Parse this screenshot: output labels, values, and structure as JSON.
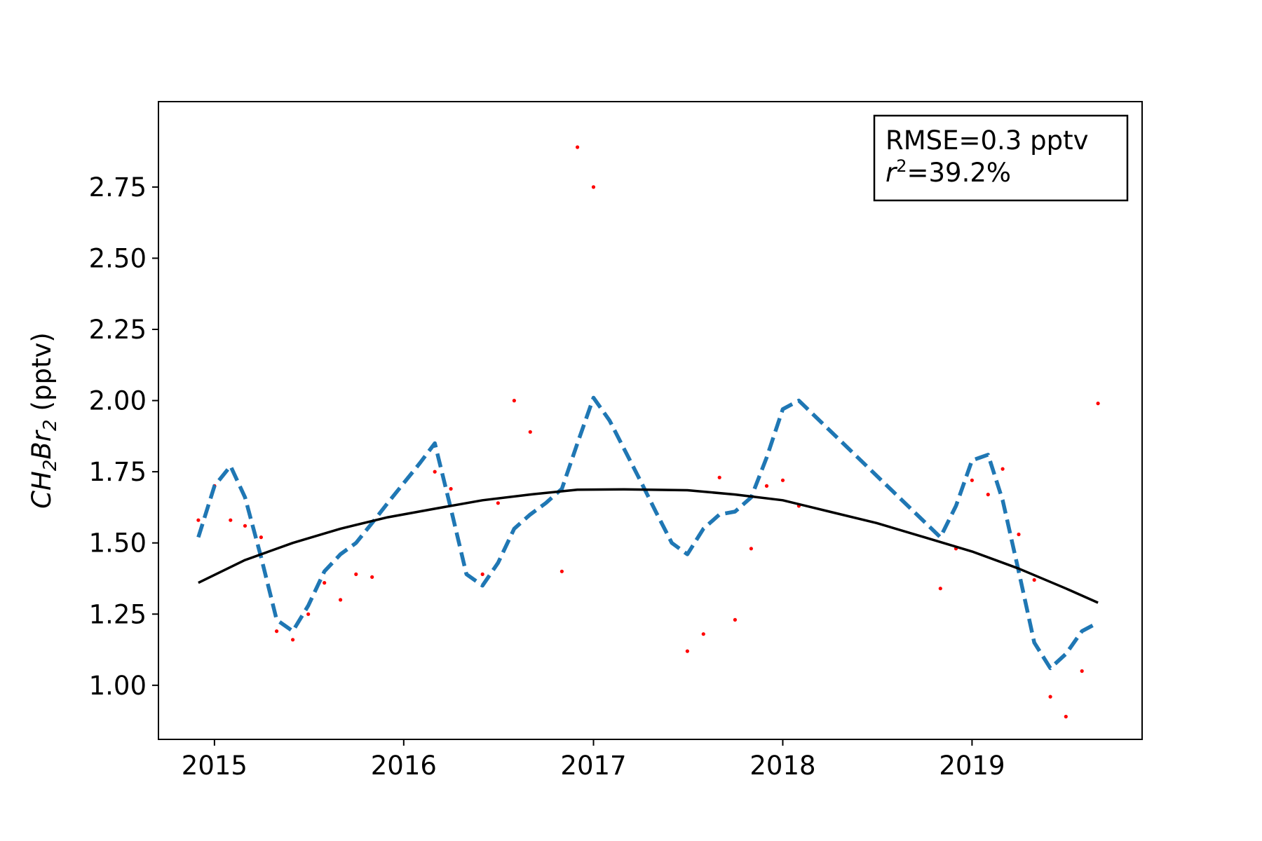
{
  "chart_data": {
    "type": "line",
    "ylabel": {
      "main": "CH",
      "sub1": "2",
      "mid": "Br",
      "sub2": "2",
      "unit": "(pptv)"
    },
    "xlim": [
      "2014-09-15",
      "2019-11-25"
    ],
    "ylim": [
      0.81,
      3.05
    ],
    "xticks": [
      {
        "date": "2015-01-01",
        "label": "2015"
      },
      {
        "date": "2016-01-01",
        "label": "2016"
      },
      {
        "date": "2017-01-01",
        "label": "2017"
      },
      {
        "date": "2018-01-01",
        "label": "2018"
      },
      {
        "date": "2019-01-01",
        "label": "2019"
      }
    ],
    "yticks": [
      {
        "value": 1.0,
        "label": "1.00"
      },
      {
        "value": 1.25,
        "label": "1.25"
      },
      {
        "value": 1.5,
        "label": "1.50"
      },
      {
        "value": 1.75,
        "label": "1.75"
      },
      {
        "value": 2.0,
        "label": "2.00"
      },
      {
        "value": 2.25,
        "label": "2.25"
      },
      {
        "value": 2.5,
        "label": "2.50"
      },
      {
        "value": 2.75,
        "label": "2.75"
      }
    ],
    "legend": {
      "placement": "top-right",
      "rmse": "RMSE=0.3 pptv",
      "r2_symbol": "r",
      "r2_exp": "2",
      "r2_value": "=39.2%"
    },
    "series": [
      {
        "style": "scatter",
        "color": "#ff0000",
        "points": [
          [
            "2014-12-01",
            1.58
          ],
          [
            "2015-01-01",
            1.7
          ],
          [
            "2015-02-01",
            1.58
          ],
          [
            "2015-03-01",
            1.56
          ],
          [
            "2015-04-01",
            1.52
          ],
          [
            "2015-05-01",
            1.19
          ],
          [
            "2015-06-01",
            1.16
          ],
          [
            "2015-07-01",
            1.25
          ],
          [
            "2015-08-01",
            1.36
          ],
          [
            "2015-09-01",
            1.3
          ],
          [
            "2015-10-01",
            1.39
          ],
          [
            "2015-11-01",
            1.38
          ],
          [
            "2016-03-01",
            1.75
          ],
          [
            "2016-04-01",
            1.69
          ],
          [
            "2016-06-01",
            1.39
          ],
          [
            "2016-07-01",
            1.64
          ],
          [
            "2016-08-01",
            2.0
          ],
          [
            "2016-09-01",
            1.89
          ],
          [
            "2016-11-01",
            1.4
          ],
          [
            "2016-12-01",
            2.89
          ],
          [
            "2017-01-01",
            2.75
          ],
          [
            "2017-07-01",
            1.12
          ],
          [
            "2017-08-01",
            1.18
          ],
          [
            "2017-09-01",
            1.73
          ],
          [
            "2017-10-01",
            1.23
          ],
          [
            "2017-11-01",
            1.48
          ],
          [
            "2017-12-01",
            1.7
          ],
          [
            "2018-01-01",
            1.72
          ],
          [
            "2018-02-01",
            1.63
          ],
          [
            "2018-11-01",
            1.34
          ],
          [
            "2018-12-01",
            1.48
          ],
          [
            "2019-01-01",
            1.72
          ],
          [
            "2019-02-01",
            1.67
          ],
          [
            "2019-03-01",
            1.76
          ],
          [
            "2019-04-01",
            1.53
          ],
          [
            "2019-05-01",
            1.37
          ],
          [
            "2019-06-01",
            0.96
          ],
          [
            "2019-07-01",
            0.89
          ],
          [
            "2019-08-01",
            1.05
          ],
          [
            "2019-09-01",
            1.99
          ]
        ]
      },
      {
        "style": "dashed",
        "color": "#1f77b4",
        "points": [
          [
            "2014-12-01",
            1.52
          ],
          [
            "2015-01-01",
            1.7
          ],
          [
            "2015-02-01",
            1.77
          ],
          [
            "2015-03-01",
            1.66
          ],
          [
            "2015-04-01",
            1.45
          ],
          [
            "2015-05-01",
            1.23
          ],
          [
            "2015-06-01",
            1.19
          ],
          [
            "2015-07-01",
            1.28
          ],
          [
            "2015-08-01",
            1.4
          ],
          [
            "2015-09-01",
            1.46
          ],
          [
            "2015-10-01",
            1.5
          ],
          [
            "2015-11-01",
            1.57
          ],
          [
            "2015-12-01",
            1.64
          ],
          [
            "2016-01-01",
            1.71
          ],
          [
            "2016-02-01",
            1.78
          ],
          [
            "2016-03-01",
            1.85
          ],
          [
            "2016-04-01",
            1.62
          ],
          [
            "2016-05-01",
            1.39
          ],
          [
            "2016-06-01",
            1.35
          ],
          [
            "2016-07-01",
            1.43
          ],
          [
            "2016-08-01",
            1.55
          ],
          [
            "2016-09-01",
            1.6
          ],
          [
            "2016-10-01",
            1.64
          ],
          [
            "2016-11-01",
            1.69
          ],
          [
            "2016-12-01",
            1.85
          ],
          [
            "2017-01-01",
            2.01
          ],
          [
            "2017-02-01",
            1.93
          ],
          [
            "2017-03-01",
            1.83
          ],
          [
            "2017-04-01",
            1.72
          ],
          [
            "2017-05-01",
            1.61
          ],
          [
            "2017-06-01",
            1.5
          ],
          [
            "2017-07-01",
            1.46
          ],
          [
            "2017-08-01",
            1.55
          ],
          [
            "2017-09-01",
            1.6
          ],
          [
            "2017-10-01",
            1.61
          ],
          [
            "2017-11-01",
            1.66
          ],
          [
            "2017-12-01",
            1.8
          ],
          [
            "2018-01-01",
            1.97
          ],
          [
            "2018-02-01",
            2.0
          ],
          [
            "2018-11-01",
            1.52
          ],
          [
            "2018-12-01",
            1.63
          ],
          [
            "2019-01-01",
            1.79
          ],
          [
            "2019-02-01",
            1.81
          ],
          [
            "2019-03-01",
            1.65
          ],
          [
            "2019-04-01",
            1.4
          ],
          [
            "2019-05-01",
            1.15
          ],
          [
            "2019-06-01",
            1.06
          ],
          [
            "2019-07-01",
            1.11
          ],
          [
            "2019-08-01",
            1.19
          ],
          [
            "2019-09-01",
            1.22
          ]
        ]
      },
      {
        "style": "solid",
        "color": "#000000",
        "points": [
          [
            "2014-12-01",
            1.36
          ],
          [
            "2015-03-01",
            1.44
          ],
          [
            "2015-06-01",
            1.5
          ],
          [
            "2015-09-01",
            1.55
          ],
          [
            "2015-12-01",
            1.59
          ],
          [
            "2016-03-01",
            1.62
          ],
          [
            "2016-06-01",
            1.65
          ],
          [
            "2016-09-01",
            1.67
          ],
          [
            "2016-12-01",
            1.687
          ],
          [
            "2017-03-01",
            1.688
          ],
          [
            "2017-07-01",
            1.685
          ],
          [
            "2017-10-01",
            1.67
          ],
          [
            "2018-01-01",
            1.65
          ],
          [
            "2018-04-01",
            1.61
          ],
          [
            "2018-07-01",
            1.57
          ],
          [
            "2018-10-01",
            1.52
          ],
          [
            "2019-01-01",
            1.47
          ],
          [
            "2019-04-01",
            1.41
          ],
          [
            "2019-07-01",
            1.34
          ],
          [
            "2019-09-01",
            1.29
          ]
        ]
      }
    ]
  }
}
